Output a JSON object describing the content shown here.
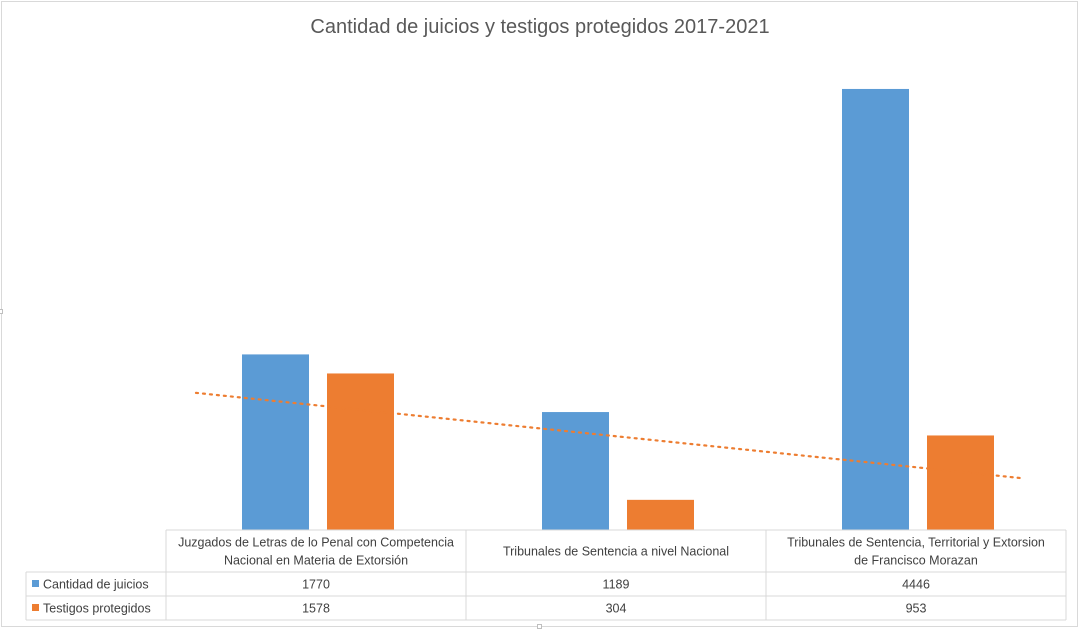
{
  "chart_data": {
    "type": "bar",
    "title": "Cantidad de juicios y testigos protegidos 2017-2021",
    "categories": [
      [
        "Juzgados de Letras de lo Penal con Competencia",
        "Nacional  en Materia de Extorsión"
      ],
      [
        "Tribunales de Sentencia a nivel Nacional"
      ],
      [
        "Tribunales de Sentencia, Territorial y Extorsion",
        "de Francisco Morazan"
      ]
    ],
    "series": [
      {
        "name": "Cantidad de juicios",
        "color": "#5b9bd5",
        "values": [
          1770,
          1189,
          4446
        ]
      },
      {
        "name": "Testigos protegidos",
        "color": "#ed7d31",
        "values": [
          1578,
          304,
          953
        ]
      }
    ],
    "trendline": {
      "series": "Testigos protegidos",
      "type": "linear",
      "style": "dotted",
      "color": "#ed7d31"
    },
    "ylim": [
      0,
      5000
    ],
    "grid": false,
    "data_table": true
  }
}
